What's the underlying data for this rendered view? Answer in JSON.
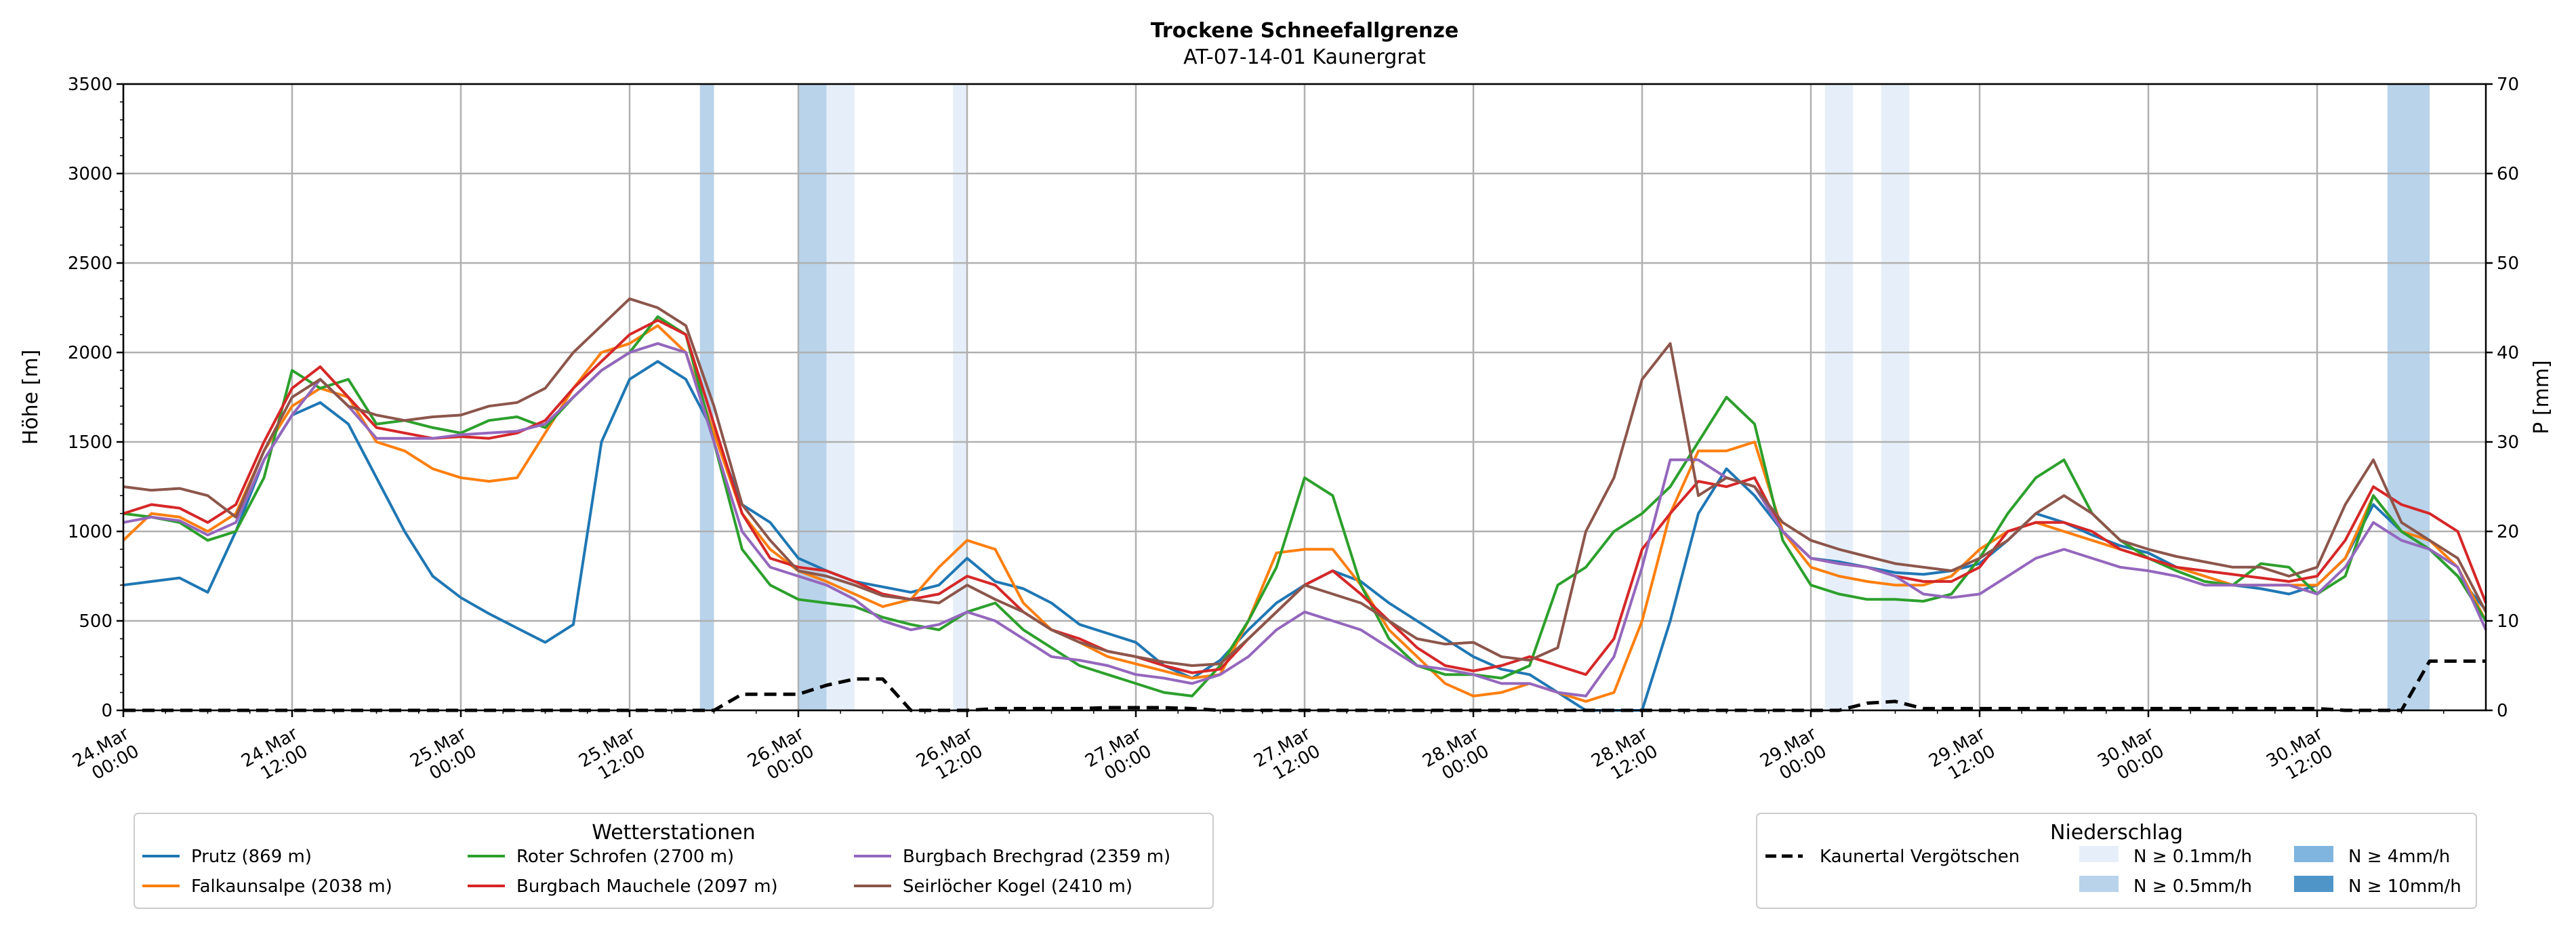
{
  "chart_data": {
    "type": "line",
    "title": "Trockene Schneefallgrenze",
    "subtitle": "AT-07-14-01 Kaunergrat",
    "ylabel_left": "Höhe [m]",
    "ylabel_right": "P [mm]",
    "ylim_left": [
      0,
      3500
    ],
    "ylim_right": [
      0,
      70
    ],
    "yticks_left": [
      0,
      500,
      1000,
      1500,
      2000,
      2500,
      3000,
      3500
    ],
    "yticks_right": [
      0,
      10,
      20,
      30,
      40,
      50,
      60,
      70
    ],
    "x_unit": "hours from 24.Mar 00:00",
    "xlim": [
      0,
      168
    ],
    "xticks": [
      {
        "x": 0,
        "line1": "24.Mar",
        "line2": "00:00"
      },
      {
        "x": 12,
        "line1": "24.Mar",
        "line2": "12:00"
      },
      {
        "x": 24,
        "line1": "25.Mar",
        "line2": "00:00"
      },
      {
        "x": 36,
        "line1": "25.Mar",
        "line2": "12:00"
      },
      {
        "x": 48,
        "line1": "26.Mar",
        "line2": "00:00"
      },
      {
        "x": 60,
        "line1": "26.Mar",
        "line2": "12:00"
      },
      {
        "x": 72,
        "line1": "27.Mar",
        "line2": "00:00"
      },
      {
        "x": 84,
        "line1": "27.Mar",
        "line2": "12:00"
      },
      {
        "x": 96,
        "line1": "28.Mar",
        "line2": "00:00"
      },
      {
        "x": 108,
        "line1": "28.Mar",
        "line2": "12:00"
      },
      {
        "x": 120,
        "line1": "29.Mar",
        "line2": "00:00"
      },
      {
        "x": 132,
        "line1": "29.Mar",
        "line2": "12:00"
      },
      {
        "x": 144,
        "line1": "30.Mar",
        "line2": "00:00"
      },
      {
        "x": 156,
        "line1": "30.Mar",
        "line2": "12:00"
      }
    ],
    "grid": true,
    "x": [
      0,
      2,
      4,
      6,
      8,
      10,
      12,
      14,
      16,
      18,
      20,
      22,
      24,
      26,
      28,
      30,
      32,
      34,
      36,
      38,
      40,
      42,
      44,
      46,
      48,
      50,
      52,
      54,
      56,
      58,
      60,
      62,
      64,
      66,
      68,
      70,
      72,
      74,
      76,
      78,
      80,
      82,
      84,
      86,
      88,
      90,
      92,
      94,
      96,
      98,
      100,
      102,
      104,
      106,
      108,
      110,
      112,
      114,
      116,
      118,
      120,
      122,
      124,
      126,
      128,
      130,
      132,
      134,
      136,
      138,
      140,
      142,
      144,
      146,
      148,
      150,
      152,
      154,
      156,
      158,
      160,
      162,
      164,
      166,
      168
    ],
    "series": [
      {
        "name": "Prutz (869 m)",
        "color": "#1f77b4",
        "values": [
          700,
          720,
          740,
          660,
          1000,
          1400,
          1650,
          1720,
          1600,
          1300,
          1000,
          750,
          630,
          540,
          460,
          380,
          480,
          1500,
          1850,
          1950,
          1850,
          1550,
          1150,
          1050,
          850,
          780,
          720,
          690,
          660,
          700,
          850,
          720,
          680,
          600,
          480,
          430,
          380,
          250,
          180,
          280,
          450,
          600,
          700,
          780,
          720,
          600,
          500,
          400,
          300,
          230,
          200,
          100,
          0,
          0,
          0,
          500,
          1100,
          1350,
          1200,
          1000,
          850,
          830,
          800,
          770,
          760,
          780,
          820,
          950,
          1100,
          1050,
          980,
          920,
          880,
          800,
          750,
          700,
          680,
          650,
          700,
          850,
          1150,
          1000,
          900,
          750,
          560
        ]
      },
      {
        "name": "Falkaunsalpe (2038 m)",
        "color": "#ff7f0e",
        "values": [
          950,
          1100,
          1080,
          1000,
          1100,
          1450,
          1700,
          1800,
          1750,
          1500,
          1450,
          1350,
          1300,
          1280,
          1300,
          1550,
          1800,
          2000,
          2050,
          2150,
          2000,
          1550,
          1100,
          900,
          780,
          720,
          650,
          580,
          620,
          800,
          950,
          900,
          600,
          450,
          380,
          300,
          260,
          220,
          180,
          200,
          500,
          880,
          900,
          900,
          700,
          450,
          300,
          150,
          80,
          100,
          150,
          100,
          50,
          100,
          500,
          1100,
          1450,
          1450,
          1500,
          1000,
          800,
          750,
          720,
          700,
          700,
          750,
          900,
          1000,
          1050,
          1000,
          950,
          900,
          850,
          800,
          750,
          700,
          700,
          700,
          700,
          850,
          1200,
          1000,
          950,
          800,
          500
        ]
      },
      {
        "name": "Roter Schrofen (2700 m)",
        "color": "#2ca02c",
        "values": [
          1100,
          1080,
          1050,
          950,
          1000,
          1300,
          1900,
          1800,
          1850,
          1600,
          1620,
          1580,
          1550,
          1620,
          1640,
          1580,
          1750,
          1900,
          2000,
          2200,
          2100,
          1500,
          900,
          700,
          620,
          600,
          580,
          520,
          480,
          450,
          550,
          600,
          450,
          350,
          250,
          200,
          150,
          100,
          80,
          250,
          500,
          800,
          1300,
          1200,
          700,
          400,
          250,
          200,
          200,
          180,
          250,
          700,
          800,
          1000,
          1100,
          1250,
          1500,
          1750,
          1600,
          950,
          700,
          650,
          620,
          620,
          610,
          650,
          850,
          1100,
          1300,
          1400,
          1100,
          950,
          850,
          780,
          720,
          700,
          820,
          800,
          650,
          750,
          1200,
          1000,
          900,
          750,
          500
        ]
      },
      {
        "name": "Burgbach Mauchele (2097 m)",
        "color": "#d62728",
        "values": [
          1100,
          1150,
          1130,
          1050,
          1150,
          1500,
          1800,
          1920,
          1750,
          1580,
          1550,
          1520,
          1530,
          1520,
          1550,
          1620,
          1800,
          1950,
          2100,
          2180,
          2100,
          1600,
          1100,
          850,
          800,
          780,
          720,
          650,
          620,
          650,
          750,
          700,
          550,
          450,
          400,
          330,
          300,
          250,
          210,
          230,
          400,
          550,
          700,
          780,
          650,
          500,
          350,
          250,
          220,
          250,
          300,
          250,
          200,
          400,
          900,
          1100,
          1280,
          1250,
          1300,
          1000,
          850,
          820,
          800,
          750,
          720,
          720,
          800,
          1000,
          1050,
          1050,
          1000,
          900,
          850,
          800,
          780,
          760,
          740,
          720,
          750,
          950,
          1250,
          1150,
          1100,
          1000,
          600
        ]
      },
      {
        "name": "Burgbach Brechgrad (2359 m)",
        "color": "#9467bd",
        "values": [
          1050,
          1080,
          1060,
          980,
          1050,
          1400,
          1650,
          1850,
          1700,
          1520,
          1520,
          1520,
          1540,
          1550,
          1560,
          1600,
          1750,
          1900,
          2000,
          2050,
          2000,
          1500,
          1000,
          800,
          750,
          700,
          620,
          500,
          450,
          480,
          550,
          500,
          400,
          300,
          280,
          250,
          200,
          180,
          150,
          200,
          300,
          450,
          550,
          500,
          450,
          350,
          250,
          230,
          200,
          150,
          150,
          100,
          80,
          300,
          800,
          1400,
          1400,
          1300,
          1250,
          1000,
          850,
          820,
          800,
          750,
          650,
          630,
          650,
          750,
          850,
          900,
          850,
          800,
          780,
          750,
          700,
          700,
          700,
          700,
          650,
          800,
          1050,
          950,
          900,
          800,
          450
        ]
      },
      {
        "name": "Seirlöcher Kogel (2410 m)",
        "color": "#8c564b",
        "values": [
          1250,
          1230,
          1240,
          1200,
          1080,
          1450,
          1750,
          1850,
          1700,
          1650,
          1620,
          1640,
          1650,
          1700,
          1720,
          1800,
          2000,
          2150,
          2300,
          2250,
          2150,
          1700,
          1150,
          950,
          780,
          750,
          700,
          640,
          620,
          600,
          700,
          620,
          550,
          450,
          380,
          330,
          300,
          270,
          250,
          260,
          400,
          550,
          700,
          650,
          600,
          500,
          400,
          370,
          380,
          300,
          280,
          350,
          1000,
          1300,
          1850,
          2050,
          1200,
          1300,
          1250,
          1050,
          950,
          900,
          860,
          820,
          800,
          780,
          850,
          950,
          1100,
          1200,
          1100,
          950,
          900,
          860,
          830,
          800,
          800,
          750,
          800,
          1150,
          1400,
          1050,
          950,
          850,
          550
        ]
      },
      {
        "name": "Kaunertal Vergötschen",
        "color": "#000000",
        "dashed": true,
        "axis": "right",
        "values": [
          0,
          0,
          0,
          0,
          0,
          0,
          0,
          0,
          0,
          0,
          0,
          0,
          0,
          0,
          0,
          0,
          0,
          0,
          0,
          0,
          0,
          0,
          1.8,
          1.8,
          1.8,
          2.8,
          3.5,
          3.5,
          0,
          0,
          0,
          0.2,
          0.2,
          0.2,
          0.2,
          0.3,
          0.3,
          0.3,
          0.2,
          0,
          0,
          0,
          0,
          0,
          0,
          0,
          0,
          0,
          0,
          0,
          0,
          0,
          0,
          0,
          0,
          0,
          0,
          0,
          0,
          0,
          0,
          0,
          0.8,
          1.0,
          0.2,
          0.2,
          0.2,
          0.2,
          0.2,
          0.2,
          0.2,
          0.2,
          0.2,
          0.2,
          0.2,
          0.2,
          0.2,
          0.2,
          0.2,
          0,
          0,
          0,
          5.5,
          5.5,
          5.5
        ]
      }
    ],
    "precip_bands": [
      {
        "x0": 41.0,
        "x1": 42.0,
        "level": 1
      },
      {
        "x0": 48.0,
        "x1": 50.0,
        "level": 1
      },
      {
        "x0": 50.0,
        "x1": 52.0,
        "level": 0
      },
      {
        "x0": 59.0,
        "x1": 60.0,
        "level": 0
      },
      {
        "x0": 121.0,
        "x1": 123.0,
        "level": 0
      },
      {
        "x0": 125.0,
        "x1": 127.0,
        "level": 0
      },
      {
        "x0": 161.0,
        "x1": 164.0,
        "level": 1
      }
    ],
    "legend_stations": {
      "title": "Wetterstationen",
      "position": "bottom-left"
    },
    "legend_precip": {
      "title": "Niederschlag",
      "position": "bottom-right",
      "items": [
        {
          "label": "N ≥ 0.1mm/h",
          "color": "#e6eff9"
        },
        {
          "label": "N ≥ 0.5mm/h",
          "color": "#b8d3ea"
        },
        {
          "label": "N ≥ 4mm/h",
          "color": "#7fb5df"
        },
        {
          "label": "N ≥ 10mm/h",
          "color": "#4f95c8"
        }
      ]
    }
  }
}
